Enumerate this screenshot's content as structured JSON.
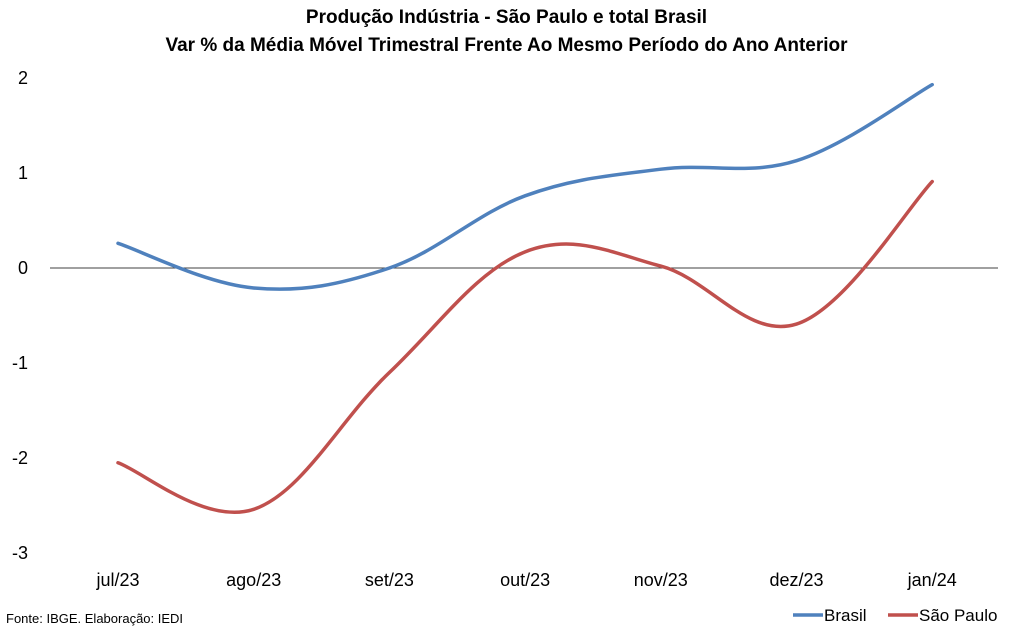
{
  "header": {
    "title": "Produção Indústria - São Paulo e total Brasil",
    "subtitle": "Var % da Média Móvel Trimestral Frente Ao Mesmo Período do Ano Anterior"
  },
  "footer": {
    "source": "Fonte: IBGE. Elaboração: IEDI"
  },
  "chart_data": {
    "type": "line",
    "title": "Produção Indústria - São Paulo e total Brasil",
    "subtitle": "Var % da Média Móvel Trimestral Frente Ao Mesmo Período do Ano Anterior",
    "categories": [
      "jul/23",
      "ago/23",
      "set/23",
      "out/23",
      "nov/23",
      "dez/23",
      "jan/24"
    ],
    "ylim": [
      -3,
      2
    ],
    "yticks": [
      2,
      1,
      0,
      -1,
      -2,
      -3
    ],
    "grid": false,
    "zero_line": true,
    "smooth": true,
    "legend_position": "bottom-right",
    "series": [
      {
        "name": "Brasil",
        "color": "#4F81BD",
        "values": [
          0.26,
          -0.21,
          0.0,
          0.76,
          1.04,
          1.13,
          1.93
        ]
      },
      {
        "name": "São Paulo",
        "color": "#C0504D",
        "values": [
          -2.05,
          -2.54,
          -1.1,
          0.17,
          0.02,
          -0.59,
          0.91
        ]
      }
    ]
  }
}
